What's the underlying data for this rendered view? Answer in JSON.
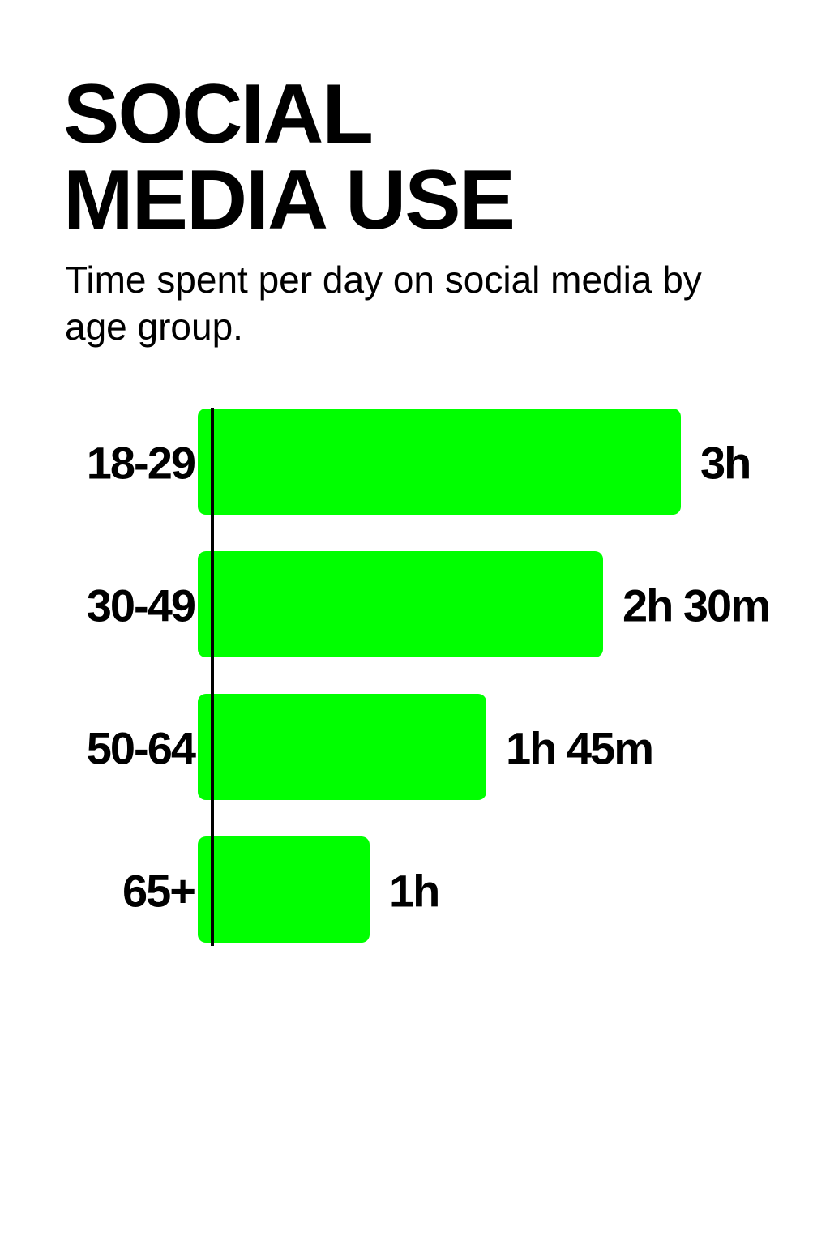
{
  "header": {
    "title_line1": "SOCIAL",
    "title_line2": "MEDIA USE",
    "subtitle": "Time spent per day on social media by age group."
  },
  "chart_data": {
    "type": "bar",
    "orientation": "horizontal",
    "title": "SOCIAL MEDIA USE",
    "subtitle": "Time spent per day on social media by age group.",
    "categories": [
      "18-29",
      "30-49",
      "50-64",
      "65+"
    ],
    "values": [
      180,
      150,
      105,
      60
    ],
    "value_unit": "minutes",
    "value_labels": [
      "3h",
      "2h 30m",
      "1h 45m",
      "1h"
    ],
    "bar_color": "#00ff00",
    "grid": false,
    "legend": "none"
  }
}
